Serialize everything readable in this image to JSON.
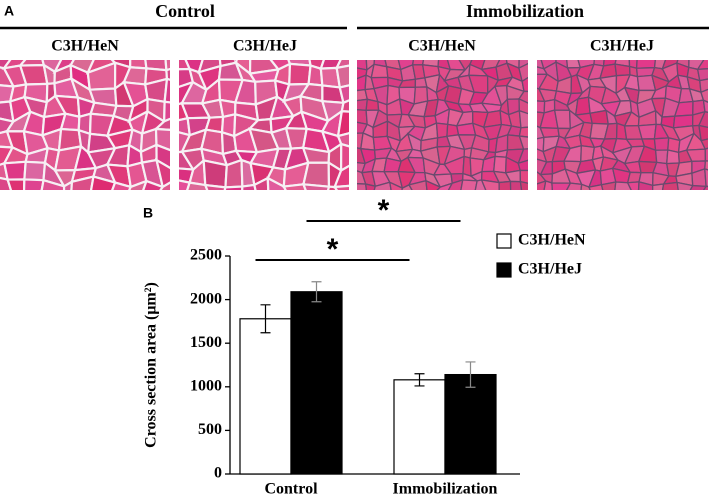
{
  "panel_a": {
    "label": "A",
    "groups": [
      {
        "title": "Control",
        "columns": [
          "C3H/HeN",
          "C3H/HeJ"
        ]
      },
      {
        "title": "Immobilization",
        "columns": [
          "C3H/HeN",
          "C3H/HeJ"
        ]
      }
    ]
  },
  "panel_b": {
    "label": "B"
  },
  "chart_data": {
    "type": "bar",
    "y_label": "Cross section area (μm²)",
    "categories": [
      "Control",
      "Immobilization"
    ],
    "series": [
      {
        "name": "C3H/HeN",
        "color": "#ffffff",
        "values": [
          1780,
          1080
        ],
        "errors": [
          160,
          70
        ]
      },
      {
        "name": "C3H/HeJ",
        "color": "#000000",
        "values": [
          2090,
          1140
        ],
        "errors": [
          115,
          145
        ]
      }
    ],
    "ylim": [
      0,
      2500
    ],
    "yticks": [
      0,
      500,
      1000,
      1500,
      2000,
      2500
    ],
    "annotations": [
      "*",
      "*"
    ],
    "legend": "upper right",
    "grid": false
  }
}
